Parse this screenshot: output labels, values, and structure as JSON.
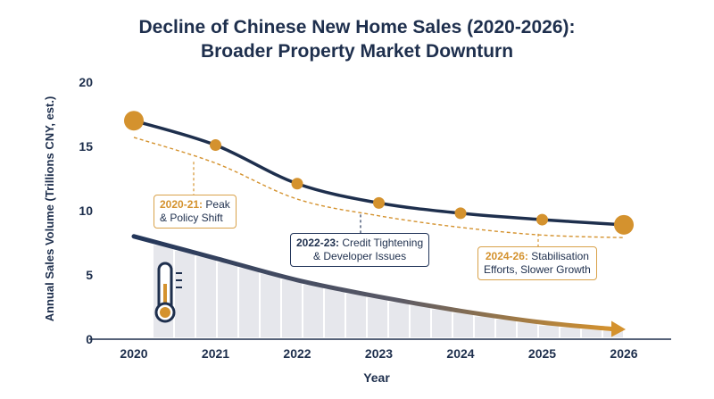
{
  "chart_data": {
    "type": "line",
    "title": "Decline of Chinese New Home Sales (2020-2026):",
    "subtitle": "Broader Property Market Downturn",
    "xlabel": "Year",
    "ylabel": "Annual Sales Volume (Trillions CNY, est.)",
    "ylim": [
      0,
      20
    ],
    "yticks": [
      0,
      5,
      10,
      15,
      20
    ],
    "x": [
      "2020",
      "2021",
      "2022",
      "2023",
      "2024",
      "2025",
      "2026"
    ],
    "series": [
      {
        "values": [
          17.0,
          15.1,
          12.1,
          10.6,
          9.8,
          9.3,
          8.9
        ],
        "color": "#1e2f4d",
        "marker_color": "#d4922e"
      },
      {
        "values": [
          15.7,
          13.7,
          10.9,
          9.6,
          8.7,
          8.1,
          7.9
        ],
        "color": "#d4922e",
        "style": "dashed"
      }
    ],
    "trend_arrow": {
      "values": [
        8.0,
        6.3,
        4.6,
        3.3,
        2.2,
        1.3,
        0.8
      ],
      "color_start": "#23365a",
      "color_end": "#d4922e"
    },
    "grid": false,
    "annotations": [
      {
        "year": "2020-21:",
        "text1": "Peak",
        "text2": "& Policy Shift",
        "style": "orange"
      },
      {
        "year": "2022-23:",
        "text1": "Credit Tightening",
        "text2": "& Developer Issues",
        "style": "navy"
      },
      {
        "year": "2024-26:",
        "text1": "Stabilisation",
        "text2": "Efforts, Slower Growth",
        "style": "orange"
      }
    ],
    "icon": "thermometer-icon"
  }
}
